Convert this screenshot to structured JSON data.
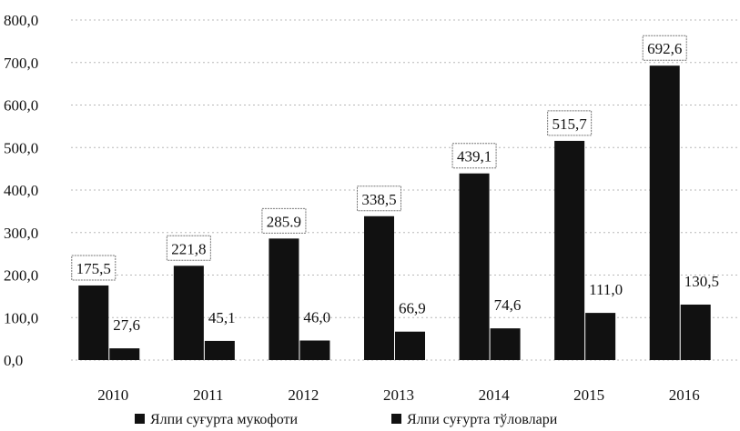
{
  "chart_data": {
    "type": "bar",
    "categories": [
      "2010",
      "2011",
      "2012",
      "2013",
      "2014",
      "2015",
      "2016"
    ],
    "series": [
      {
        "name": "Ялпи суғурта мукофоти",
        "values": [
          175.5,
          221.8,
          285.9,
          338.5,
          439.1,
          515.7,
          692.6
        ],
        "labels": [
          "175,5",
          "221,8",
          "285.9",
          "338,5",
          "439,1",
          "515,7",
          "692,6"
        ],
        "color": "#111111"
      },
      {
        "name": "Ялпи суғурта тўловлари",
        "values": [
          27.6,
          45.1,
          46.0,
          66.9,
          74.6,
          111.0,
          130.5
        ],
        "labels": [
          "27,6",
          "45,1",
          "46,0",
          "66,9",
          "74,6",
          "111,0",
          "130,5"
        ],
        "color": "#111111"
      }
    ],
    "yticks": [
      "0,0",
      "100,0",
      "200,0",
      "300,0",
      "400,0",
      "500,0",
      "600,0",
      "700,0",
      "800,0"
    ],
    "ylim": [
      0,
      800
    ],
    "grid": true,
    "legend_position": "bottom"
  }
}
